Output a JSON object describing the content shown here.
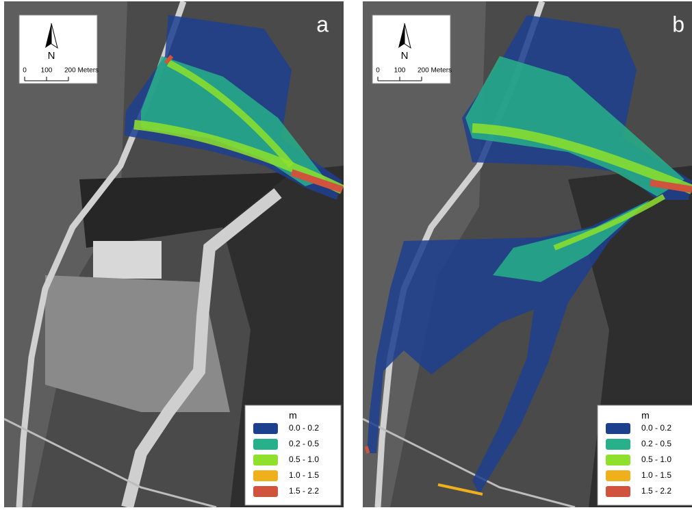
{
  "panels": [
    {
      "label": "a",
      "north": "N",
      "scale": [
        "0",
        "100",
        "200 Meters"
      ],
      "legend": {
        "title": "m",
        "items": [
          {
            "label": "0.0 - 0.2",
            "color": "#1c3f8e"
          },
          {
            "label": "0.2 - 0.5",
            "color": "#27b08a"
          },
          {
            "label": "0.5 - 1.0",
            "color": "#8ee02c"
          },
          {
            "label": "1.0 - 1.5",
            "color": "#efb01c"
          },
          {
            "label": "1.5 - 2.2",
            "color": "#cf533d"
          }
        ]
      }
    },
    {
      "label": "b",
      "north": "N",
      "scale": [
        "0",
        "100",
        "200 Meters"
      ],
      "legend": {
        "title": "m",
        "items": [
          {
            "label": "0.0 - 0.2",
            "color": "#1c3f8e"
          },
          {
            "label": "0.2 - 0.5",
            "color": "#27b08a"
          },
          {
            "label": "0.5 - 1.0",
            "color": "#8ee02c"
          },
          {
            "label": "1.0 - 1.5",
            "color": "#efb01c"
          },
          {
            "label": "1.5 - 2.2",
            "color": "#cf533d"
          }
        ]
      }
    }
  ]
}
